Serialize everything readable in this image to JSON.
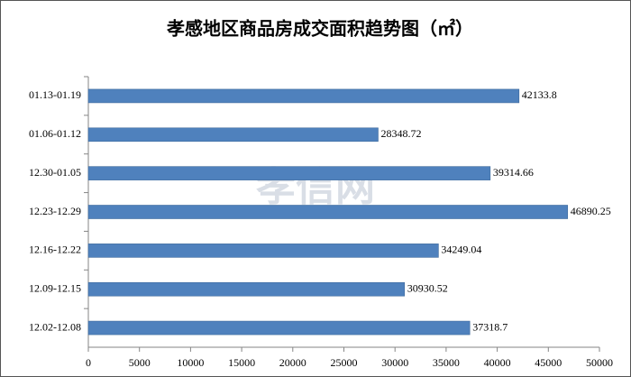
{
  "chart_data": {
    "type": "hbar",
    "title": "孝感地区商品房成交面积趋势图（㎡）",
    "watermark": "孝信网",
    "categories": [
      "01.13-01.19",
      "01.06-01.12",
      "12.30-01.05",
      "12.23-12.29",
      "12.16-12.22",
      "12.09-12.15",
      "12.02-12.08"
    ],
    "values": [
      42133.8,
      28348.72,
      39314.66,
      46890.25,
      34249.04,
      30930.52,
      37318.7
    ],
    "color": "#4f81bd",
    "xlim": [
      0,
      50000
    ],
    "xticks": [
      0,
      5000,
      10000,
      15000,
      20000,
      25000,
      30000,
      35000,
      40000,
      45000,
      50000
    ],
    "grid": false
  }
}
